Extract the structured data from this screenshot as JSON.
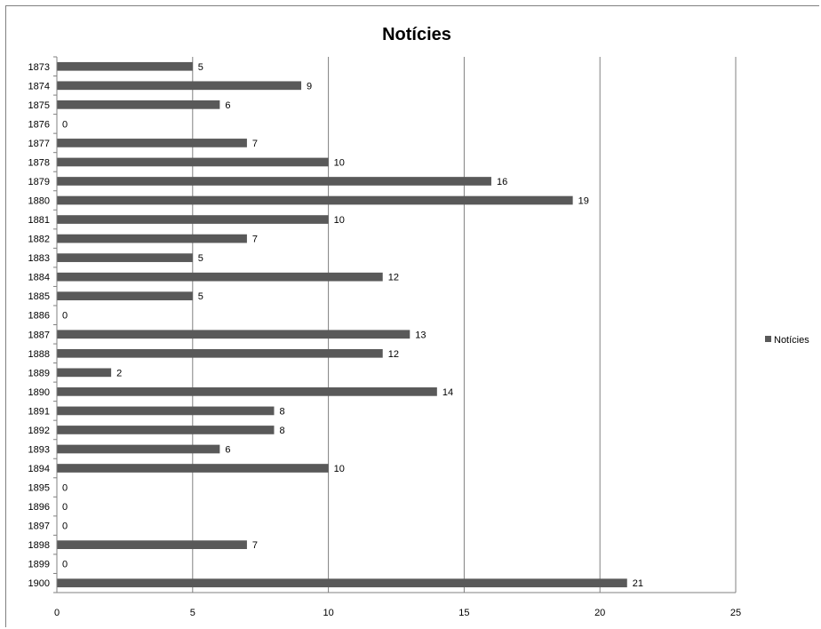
{
  "chart_data": {
    "type": "bar",
    "orientation": "horizontal",
    "title": "Notícies",
    "xlabel": "",
    "ylabel": "",
    "xlim": [
      0,
      25
    ],
    "xticks": [
      0,
      5,
      10,
      15,
      20,
      25
    ],
    "grid": "vertical major gridlines",
    "legend": "right",
    "bar_color": "#595959",
    "categories": [
      "1873",
      "1874",
      "1875",
      "1876",
      "1877",
      "1878",
      "1879",
      "1880",
      "1881",
      "1882",
      "1883",
      "1884",
      "1885",
      "1886",
      "1887",
      "1888",
      "1889",
      "1890",
      "1891",
      "1892",
      "1893",
      "1894",
      "1895",
      "1896",
      "1897",
      "1898",
      "1899",
      "1900"
    ],
    "series": [
      {
        "name": "Notícies",
        "values": [
          5,
          9,
          6,
          0,
          7,
          10,
          16,
          19,
          10,
          7,
          5,
          12,
          5,
          0,
          13,
          12,
          2,
          14,
          8,
          8,
          6,
          10,
          0,
          0,
          0,
          7,
          0,
          21
        ]
      }
    ],
    "data_labels": true
  }
}
